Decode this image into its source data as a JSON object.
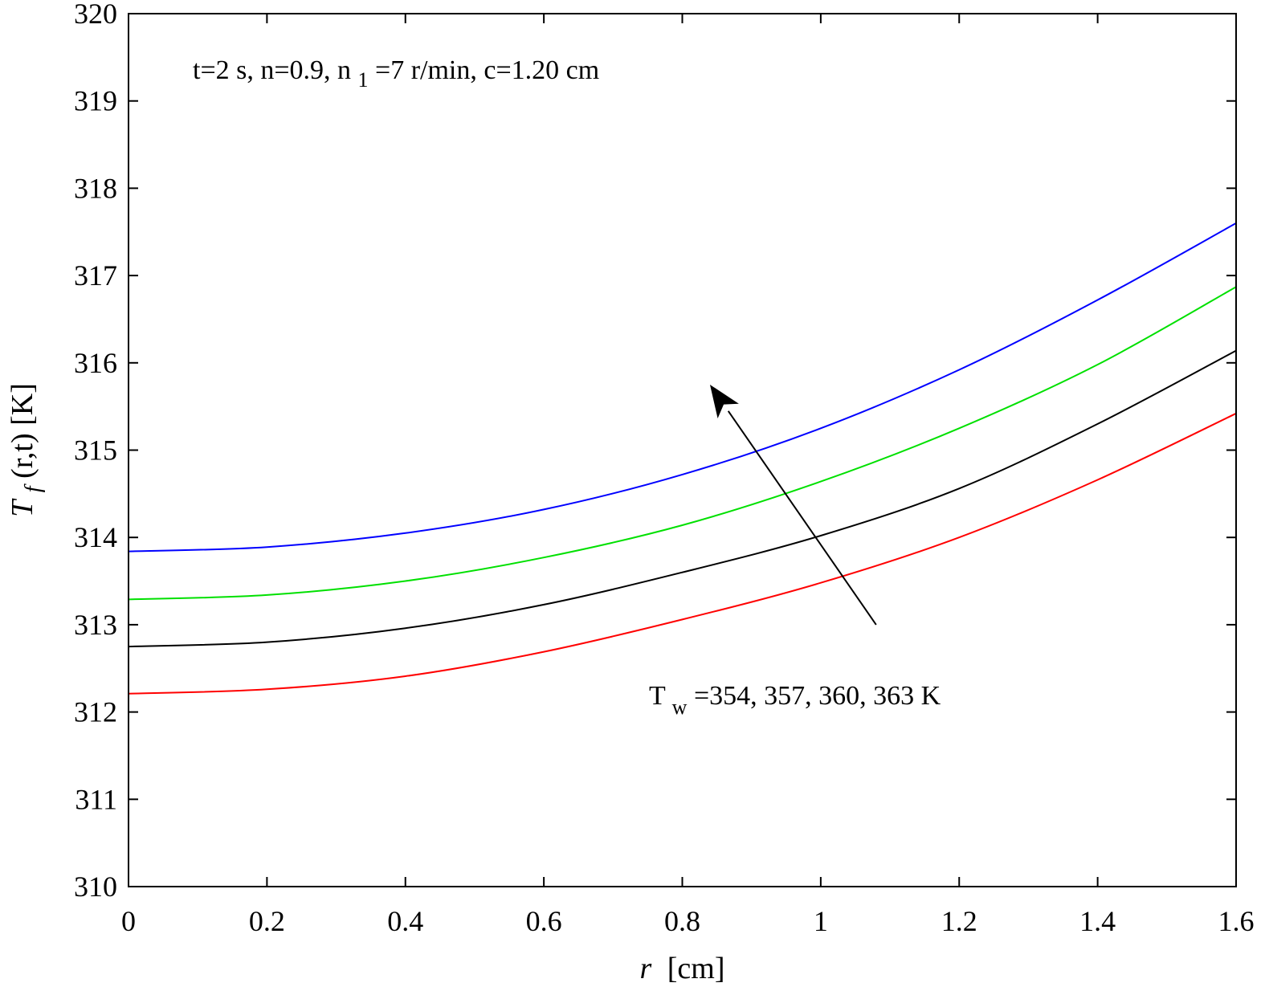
{
  "chart_data": {
    "type": "line",
    "xlabel": {
      "main": "r",
      "units": "[cm]"
    },
    "ylabel": {
      "main": "T",
      "sub": "f",
      "rest": "(r,t) [K]"
    },
    "xlim": [
      0,
      1.6
    ],
    "ylim": [
      310,
      320
    ],
    "xticks": [
      0,
      0.2,
      0.4,
      0.6,
      0.8,
      1,
      1.2,
      1.4,
      1.6
    ],
    "xtick_labels": [
      "0",
      "0.2",
      "0.4",
      "0.6",
      "0.8",
      "1",
      "1.2",
      "1.4",
      "1.6"
    ],
    "yticks": [
      310,
      311,
      312,
      313,
      314,
      315,
      316,
      317,
      318,
      319,
      320
    ],
    "ytick_labels": [
      "310",
      "311",
      "312",
      "313",
      "314",
      "315",
      "316",
      "317",
      "318",
      "319",
      "320"
    ],
    "grid": false,
    "legend": "none",
    "annotation_params": {
      "part1": "t=2 s, n=0.9, n",
      "sub": "1",
      "part2": "=7 r/min, c=1.20 cm"
    },
    "annotation_tw": {
      "main": "T",
      "sub": "w",
      "rest": "=354, 357, 360, 363 K"
    },
    "arrow": {
      "from": [
        1.08,
        313.0
      ],
      "to": [
        0.84,
        315.75
      ]
    },
    "series": [
      {
        "color": "#ff0000",
        "x": [
          0,
          0.2,
          0.4,
          0.6,
          0.8,
          1.0,
          1.2,
          1.4,
          1.6
        ],
        "y": [
          312.21,
          312.26,
          312.41,
          312.69,
          313.06,
          313.48,
          314.0,
          314.66,
          315.42
        ]
      },
      {
        "color": "#000000",
        "x": [
          0,
          0.2,
          0.4,
          0.6,
          0.8,
          1.0,
          1.2,
          1.4,
          1.6
        ],
        "y": [
          312.75,
          312.8,
          312.96,
          313.23,
          313.6,
          314.02,
          314.56,
          315.3,
          316.14
        ]
      },
      {
        "color": "#00e000",
        "x": [
          0,
          0.2,
          0.4,
          0.6,
          0.8,
          1.0,
          1.2,
          1.4,
          1.6
        ],
        "y": [
          313.29,
          313.34,
          313.5,
          313.77,
          314.14,
          314.64,
          315.25,
          315.98,
          316.87
        ]
      },
      {
        "color": "#0000ff",
        "x": [
          0,
          0.2,
          0.4,
          0.6,
          0.8,
          1.0,
          1.2,
          1.4,
          1.6
        ],
        "y": [
          313.84,
          313.89,
          314.05,
          314.32,
          314.72,
          315.25,
          315.92,
          316.72,
          317.6
        ]
      }
    ]
  }
}
